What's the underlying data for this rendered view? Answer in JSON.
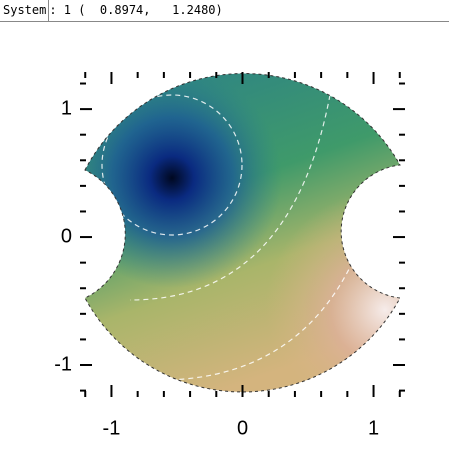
{
  "status_bar": {
    "label": "System",
    "text": ": 1 (  0.8974,   1.2480)"
  },
  "chart_data": {
    "type": "map",
    "xlim": [
      -1.24,
      1.24
    ],
    "ylim": [
      -1.25,
      1.29
    ],
    "xticks": [
      -1,
      0,
      1
    ],
    "yticks": [
      -1,
      0,
      1
    ],
    "xticks_minor": [
      -1.2,
      -0.8,
      -0.6,
      -0.4,
      -0.2,
      0.2,
      0.4,
      0.6,
      0.8,
      1.2
    ],
    "yticks_minor": [
      -1.2,
      -0.8,
      -0.6,
      -0.4,
      -0.2,
      0.2,
      0.4,
      0.6,
      0.8,
      1.2
    ]
  }
}
